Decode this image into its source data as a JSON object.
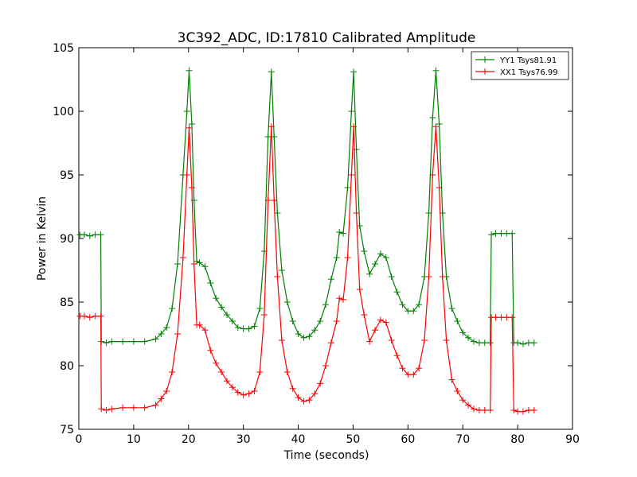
{
  "chart_data": {
    "type": "line",
    "title": "3C392_ADC, ID:17810 Calibrated Amplitude",
    "xlabel": "Time (seconds)",
    "ylabel": "Power in Kelvin",
    "xlim": [
      0,
      90
    ],
    "ylim": [
      75,
      105
    ],
    "xticks": [
      0,
      10,
      20,
      30,
      40,
      50,
      60,
      70,
      80,
      90
    ],
    "yticks": [
      75,
      80,
      85,
      90,
      95,
      100,
      105
    ],
    "grid": false,
    "legend_position": "top-right",
    "marker": "+",
    "series": [
      {
        "name": "YY1 Tsys81.91",
        "color": "#008000",
        "points": [
          [
            0.2,
            90.3
          ],
          [
            1.0,
            90.3
          ],
          [
            2.0,
            90.2
          ],
          [
            3.0,
            90.3
          ],
          [
            4.0,
            90.3
          ],
          [
            4.1,
            81.9
          ],
          [
            5,
            81.8
          ],
          [
            6,
            81.9
          ],
          [
            8,
            81.9
          ],
          [
            10,
            81.9
          ],
          [
            12,
            81.9
          ],
          [
            14,
            82.1
          ],
          [
            15,
            82.5
          ],
          [
            16,
            83.0
          ],
          [
            17,
            84.5
          ],
          [
            18,
            88.0
          ],
          [
            19,
            95.0
          ],
          [
            19.7,
            100.0
          ],
          [
            20.1,
            103.2
          ],
          [
            20.6,
            99.0
          ],
          [
            21.0,
            93.0
          ],
          [
            21.5,
            88.2
          ],
          [
            22,
            88.1
          ],
          [
            23,
            87.8
          ],
          [
            24,
            86.5
          ],
          [
            25,
            85.3
          ],
          [
            26,
            84.6
          ],
          [
            27,
            84.0
          ],
          [
            28,
            83.5
          ],
          [
            29,
            83.0
          ],
          [
            30,
            82.9
          ],
          [
            31,
            82.9
          ],
          [
            32,
            83.1
          ],
          [
            33,
            84.5
          ],
          [
            33.8,
            89.0
          ],
          [
            34.5,
            98.0
          ],
          [
            35.1,
            103.1
          ],
          [
            35.6,
            98.0
          ],
          [
            36.2,
            92.0
          ],
          [
            37,
            87.5
          ],
          [
            38,
            85.0
          ],
          [
            39,
            83.5
          ],
          [
            40,
            82.5
          ],
          [
            41,
            82.2
          ],
          [
            42,
            82.3
          ],
          [
            43,
            82.8
          ],
          [
            44,
            83.5
          ],
          [
            45,
            84.8
          ],
          [
            46,
            86.8
          ],
          [
            47,
            88.5
          ],
          [
            47.5,
            90.5
          ],
          [
            48.2,
            90.4
          ],
          [
            49,
            94.0
          ],
          [
            49.7,
            100.0
          ],
          [
            50.1,
            103.1
          ],
          [
            50.6,
            97.0
          ],
          [
            51.2,
            91.0
          ],
          [
            52,
            89.0
          ],
          [
            53,
            87.2
          ],
          [
            54,
            88.0
          ],
          [
            55,
            88.8
          ],
          [
            56,
            88.5
          ],
          [
            57,
            87.0
          ],
          [
            58,
            85.8
          ],
          [
            59,
            84.8
          ],
          [
            60,
            84.3
          ],
          [
            61,
            84.3
          ],
          [
            62,
            84.8
          ],
          [
            63,
            87.0
          ],
          [
            63.8,
            92.0
          ],
          [
            64.5,
            99.5
          ],
          [
            65.1,
            103.2
          ],
          [
            65.7,
            99.0
          ],
          [
            66.3,
            92.0
          ],
          [
            67,
            87.0
          ],
          [
            68,
            84.5
          ],
          [
            69,
            83.5
          ],
          [
            70,
            82.6
          ],
          [
            71,
            82.2
          ],
          [
            72,
            81.9
          ],
          [
            73,
            81.8
          ],
          [
            74,
            81.8
          ],
          [
            75,
            81.8
          ],
          [
            75.2,
            90.3
          ],
          [
            76,
            90.4
          ],
          [
            77,
            90.4
          ],
          [
            78,
            90.4
          ],
          [
            79,
            90.4
          ],
          [
            79.3,
            81.8
          ],
          [
            80,
            81.8
          ],
          [
            81,
            81.7
          ],
          [
            82,
            81.8
          ],
          [
            83,
            81.8
          ]
        ]
      },
      {
        "name": "XX1 Tsys76.99",
        "color": "#ff0000",
        "points": [
          [
            0.2,
            83.9
          ],
          [
            1.0,
            83.9
          ],
          [
            2.0,
            83.8
          ],
          [
            3.0,
            83.9
          ],
          [
            4.0,
            83.9
          ],
          [
            4.1,
            76.6
          ],
          [
            5,
            76.5
          ],
          [
            6,
            76.6
          ],
          [
            8,
            76.7
          ],
          [
            10,
            76.7
          ],
          [
            12,
            76.7
          ],
          [
            14,
            76.9
          ],
          [
            15,
            77.4
          ],
          [
            16,
            78.0
          ],
          [
            17,
            79.5
          ],
          [
            18,
            82.5
          ],
          [
            19,
            88.5
          ],
          [
            19.7,
            95.0
          ],
          [
            20.1,
            98.7
          ],
          [
            20.6,
            94.0
          ],
          [
            21.0,
            88.0
          ],
          [
            21.5,
            83.2
          ],
          [
            22,
            83.2
          ],
          [
            23,
            82.8
          ],
          [
            24,
            81.2
          ],
          [
            25,
            80.2
          ],
          [
            26,
            79.5
          ],
          [
            27,
            78.8
          ],
          [
            28,
            78.3
          ],
          [
            29,
            77.9
          ],
          [
            30,
            77.7
          ],
          [
            31,
            77.8
          ],
          [
            32,
            78.0
          ],
          [
            33,
            79.5
          ],
          [
            33.8,
            84.0
          ],
          [
            34.5,
            93.0
          ],
          [
            35.1,
            98.8
          ],
          [
            35.6,
            93.0
          ],
          [
            36.2,
            87.0
          ],
          [
            37,
            82.0
          ],
          [
            38,
            79.5
          ],
          [
            39,
            78.2
          ],
          [
            40,
            77.5
          ],
          [
            41,
            77.2
          ],
          [
            42,
            77.3
          ],
          [
            43,
            77.8
          ],
          [
            44,
            78.6
          ],
          [
            45,
            80.0
          ],
          [
            46,
            81.8
          ],
          [
            47,
            83.5
          ],
          [
            47.5,
            85.3
          ],
          [
            48.2,
            85.2
          ],
          [
            49,
            88.5
          ],
          [
            49.7,
            95.0
          ],
          [
            50.1,
            98.8
          ],
          [
            50.6,
            92.0
          ],
          [
            51.2,
            86.0
          ],
          [
            52,
            84.0
          ],
          [
            53,
            81.9
          ],
          [
            54,
            82.8
          ],
          [
            55,
            83.6
          ],
          [
            56,
            83.4
          ],
          [
            57,
            82.0
          ],
          [
            58,
            80.8
          ],
          [
            59,
            79.8
          ],
          [
            60,
            79.3
          ],
          [
            61,
            79.3
          ],
          [
            62,
            79.8
          ],
          [
            63,
            82.0
          ],
          [
            63.8,
            87.0
          ],
          [
            64.5,
            95.0
          ],
          [
            65.1,
            98.8
          ],
          [
            65.7,
            94.0
          ],
          [
            66.3,
            87.0
          ],
          [
            67,
            82.0
          ],
          [
            68,
            78.9
          ],
          [
            69,
            78.0
          ],
          [
            70,
            77.3
          ],
          [
            71,
            76.9
          ],
          [
            72,
            76.6
          ],
          [
            73,
            76.5
          ],
          [
            74,
            76.5
          ],
          [
            75,
            76.5
          ],
          [
            75.2,
            83.8
          ],
          [
            76,
            83.8
          ],
          [
            77,
            83.8
          ],
          [
            78,
            83.8
          ],
          [
            79,
            83.8
          ],
          [
            79.3,
            76.5
          ],
          [
            80,
            76.4
          ],
          [
            81,
            76.4
          ],
          [
            82,
            76.5
          ],
          [
            83,
            76.5
          ]
        ]
      }
    ]
  }
}
